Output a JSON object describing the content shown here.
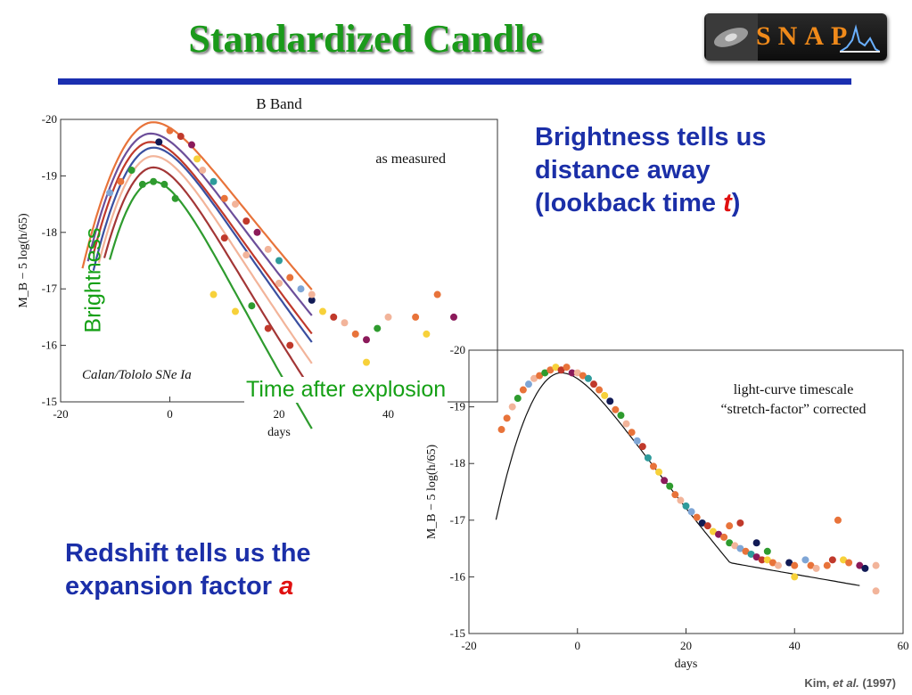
{
  "slide": {
    "title": "Standardized Candle",
    "logo_text": "SNAP",
    "brightness_lines": [
      "Brightness tells us",
      "distance away",
      "(lookback time ",
      "t",
      ")"
    ],
    "redshift_lines": [
      "Redshift tells us the",
      "expansion factor ",
      "a"
    ],
    "overlay_brightness": "Brightness",
    "overlay_time": "Time after explosion",
    "credit": {
      "author": "Kim, ",
      "etal": "et al.",
      "year": " (1997)"
    }
  },
  "colors": {
    "title_green": "#1a9a1a",
    "rule_blue": "#1b2fb0",
    "text_blue": "#1b2fa8",
    "accent_red": "#e01010"
  },
  "chart_data": [
    {
      "type": "line",
      "title": "B Band",
      "annotation": "as measured",
      "survey_label": "Calan/Tololo SNe Ia",
      "xlabel": "days",
      "ylabel": "M_B − 5 log(h/65)",
      "xlim": [
        -20,
        60
      ],
      "ylim": [
        -15,
        -20
      ],
      "xticks": [
        -20,
        0,
        20,
        40
      ],
      "yticks": [
        -20,
        -19,
        -18,
        -17,
        -16,
        -15
      ],
      "series": [
        {
          "color": "#e8733a",
          "peak": -19.95,
          "t0": -3.0,
          "decline": 0.105,
          "rise": 0.85,
          "start": -16
        },
        {
          "color": "#6c4e9a",
          "peak": -19.75,
          "t0": -3.5,
          "decline": 0.112,
          "rise": 0.95,
          "start": -15
        },
        {
          "color": "#c0392b",
          "peak": -19.6,
          "t0": -3.5,
          "decline": 0.118,
          "rise": 1.0,
          "start": -14
        },
        {
          "color": "#3a4fa0",
          "peak": -19.5,
          "t0": -3.0,
          "decline": 0.122,
          "rise": 1.0,
          "start": -14
        },
        {
          "color": "#f2b49a",
          "peak": -19.35,
          "t0": -3.0,
          "decline": 0.13,
          "rise": 1.05,
          "start": -13
        },
        {
          "color": "#a33636",
          "peak": -19.15,
          "t0": -3.0,
          "decline": 0.14,
          "rise": 1.1,
          "start": -12
        },
        {
          "color": "#2e9b2e",
          "peak": -18.9,
          "t0": -3.0,
          "decline": 0.155,
          "rise": 1.2,
          "start": -11
        }
      ],
      "points": [
        {
          "x": -11,
          "y": -18.7,
          "c": "#7fa6d6"
        },
        {
          "x": -9,
          "y": -18.9,
          "c": "#e8733a"
        },
        {
          "x": -7,
          "y": -19.1,
          "c": "#2e9b2e"
        },
        {
          "x": -5,
          "y": -18.85,
          "c": "#2e9b2e"
        },
        {
          "x": -3,
          "y": -18.9,
          "c": "#2e9b2e"
        },
        {
          "x": -1,
          "y": -18.85,
          "c": "#2e9b2e"
        },
        {
          "x": 1,
          "y": -18.6,
          "c": "#2e9b2e"
        },
        {
          "x": -2,
          "y": -19.6,
          "c": "#111a55"
        },
        {
          "x": 0,
          "y": -19.8,
          "c": "#e8733a"
        },
        {
          "x": 2,
          "y": -19.7,
          "c": "#c0392b"
        },
        {
          "x": 4,
          "y": -19.55,
          "c": "#8b1a5a"
        },
        {
          "x": 5,
          "y": -19.3,
          "c": "#f7d13a"
        },
        {
          "x": 6,
          "y": -19.1,
          "c": "#f2b49a"
        },
        {
          "x": 8,
          "y": -18.9,
          "c": "#2e9b9b"
        },
        {
          "x": 10,
          "y": -18.6,
          "c": "#e8733a"
        },
        {
          "x": 12,
          "y": -18.5,
          "c": "#f2b49a"
        },
        {
          "x": 14,
          "y": -18.2,
          "c": "#c0392b"
        },
        {
          "x": 16,
          "y": -18.0,
          "c": "#8b1a5a"
        },
        {
          "x": 18,
          "y": -17.7,
          "c": "#f2b49a"
        },
        {
          "x": 20,
          "y": -17.5,
          "c": "#2e9b9b"
        },
        {
          "x": 22,
          "y": -17.2,
          "c": "#e8733a"
        },
        {
          "x": 24,
          "y": -17.0,
          "c": "#7fa6d6"
        },
        {
          "x": 26,
          "y": -16.8,
          "c": "#111a55"
        },
        {
          "x": 28,
          "y": -16.6,
          "c": "#f7d13a"
        },
        {
          "x": 30,
          "y": -16.5,
          "c": "#c0392b"
        },
        {
          "x": 32,
          "y": -16.4,
          "c": "#f2b49a"
        },
        {
          "x": 34,
          "y": -16.2,
          "c": "#e8733a"
        },
        {
          "x": 36,
          "y": -16.1,
          "c": "#8b1a5a"
        },
        {
          "x": 38,
          "y": -16.3,
          "c": "#2e9b2e"
        },
        {
          "x": 40,
          "y": -16.5,
          "c": "#f2b49a"
        },
        {
          "x": 45,
          "y": -16.5,
          "c": "#e8733a"
        },
        {
          "x": 47,
          "y": -16.2,
          "c": "#f7d13a"
        },
        {
          "x": 49,
          "y": -16.9,
          "c": "#e8733a"
        },
        {
          "x": 52,
          "y": -16.5,
          "c": "#8b1a5a"
        },
        {
          "x": 8,
          "y": -16.9,
          "c": "#f7d13a"
        },
        {
          "x": 12,
          "y": -16.6,
          "c": "#f7d13a"
        },
        {
          "x": 15,
          "y": -16.7,
          "c": "#2e9b2e"
        },
        {
          "x": 18,
          "y": -16.3,
          "c": "#c0392b"
        },
        {
          "x": 22,
          "y": -16.0,
          "c": "#c0392b"
        },
        {
          "x": 36,
          "y": -15.7,
          "c": "#f7d13a"
        },
        {
          "x": 10,
          "y": -17.9,
          "c": "#c0392b"
        },
        {
          "x": 14,
          "y": -17.6,
          "c": "#f2b49a"
        },
        {
          "x": 20,
          "y": -17.1,
          "c": "#f2b49a"
        },
        {
          "x": 26,
          "y": -16.9,
          "c": "#f2b49a"
        }
      ]
    },
    {
      "type": "scatter",
      "annotation": [
        "light-curve timescale",
        "“stretch-factor” corrected"
      ],
      "xlabel": "days",
      "ylabel": "M_B − 5 log(h/65)",
      "xlim": [
        -20,
        60
      ],
      "ylim": [
        -15,
        -20
      ],
      "xticks": [
        -20,
        0,
        20,
        40,
        60
      ],
      "yticks": [
        -20,
        -19,
        -18,
        -17,
        -16,
        -15
      ],
      "template": {
        "peak": -19.6,
        "t0": -3.0,
        "decline": 0.11,
        "rise": 1.0,
        "start": -15,
        "end": 52,
        "floor": -16.25
      },
      "points": [
        {
          "x": -14,
          "y": -18.6,
          "c": "#e8733a"
        },
        {
          "x": -13,
          "y": -18.8,
          "c": "#e8733a"
        },
        {
          "x": -12,
          "y": -19.0,
          "c": "#f2b49a"
        },
        {
          "x": -11,
          "y": -19.15,
          "c": "#2e9b2e"
        },
        {
          "x": -10,
          "y": -19.3,
          "c": "#e8733a"
        },
        {
          "x": -9,
          "y": -19.4,
          "c": "#7fa6d6"
        },
        {
          "x": -8,
          "y": -19.5,
          "c": "#f2b49a"
        },
        {
          "x": -7,
          "y": -19.55,
          "c": "#e8733a"
        },
        {
          "x": -6,
          "y": -19.6,
          "c": "#2e9b2e"
        },
        {
          "x": -5,
          "y": -19.65,
          "c": "#e8733a"
        },
        {
          "x": -4,
          "y": -19.7,
          "c": "#f7d13a"
        },
        {
          "x": -3,
          "y": -19.65,
          "c": "#c0392b"
        },
        {
          "x": -2,
          "y": -19.7,
          "c": "#e8733a"
        },
        {
          "x": -1,
          "y": -19.6,
          "c": "#8b1a5a"
        },
        {
          "x": 0,
          "y": -19.6,
          "c": "#f2b49a"
        },
        {
          "x": 1,
          "y": -19.55,
          "c": "#e8733a"
        },
        {
          "x": 2,
          "y": -19.5,
          "c": "#2e9b9b"
        },
        {
          "x": 3,
          "y": -19.4,
          "c": "#c0392b"
        },
        {
          "x": 4,
          "y": -19.3,
          "c": "#e8733a"
        },
        {
          "x": 5,
          "y": -19.2,
          "c": "#f7d13a"
        },
        {
          "x": 6,
          "y": -19.1,
          "c": "#111a55"
        },
        {
          "x": 7,
          "y": -18.95,
          "c": "#e8733a"
        },
        {
          "x": 8,
          "y": -18.85,
          "c": "#2e9b2e"
        },
        {
          "x": 9,
          "y": -18.7,
          "c": "#f2b49a"
        },
        {
          "x": 10,
          "y": -18.55,
          "c": "#e8733a"
        },
        {
          "x": 11,
          "y": -18.4,
          "c": "#7fa6d6"
        },
        {
          "x": 12,
          "y": -18.3,
          "c": "#c0392b"
        },
        {
          "x": 13,
          "y": -18.1,
          "c": "#2e9b9b"
        },
        {
          "x": 14,
          "y": -17.95,
          "c": "#e8733a"
        },
        {
          "x": 15,
          "y": -17.85,
          "c": "#f7d13a"
        },
        {
          "x": 16,
          "y": -17.7,
          "c": "#8b1a5a"
        },
        {
          "x": 17,
          "y": -17.6,
          "c": "#2e9b2e"
        },
        {
          "x": 18,
          "y": -17.45,
          "c": "#e8733a"
        },
        {
          "x": 19,
          "y": -17.35,
          "c": "#f2b49a"
        },
        {
          "x": 20,
          "y": -17.25,
          "c": "#2e9b9b"
        },
        {
          "x": 21,
          "y": -17.15,
          "c": "#7fa6d6"
        },
        {
          "x": 22,
          "y": -17.05,
          "c": "#e8733a"
        },
        {
          "x": 23,
          "y": -16.95,
          "c": "#111a55"
        },
        {
          "x": 24,
          "y": -16.9,
          "c": "#c0392b"
        },
        {
          "x": 25,
          "y": -16.8,
          "c": "#f7d13a"
        },
        {
          "x": 26,
          "y": -16.75,
          "c": "#8b1a5a"
        },
        {
          "x": 27,
          "y": -16.7,
          "c": "#e8733a"
        },
        {
          "x": 28,
          "y": -16.6,
          "c": "#2e9b2e"
        },
        {
          "x": 29,
          "y": -16.55,
          "c": "#f2b49a"
        },
        {
          "x": 30,
          "y": -16.5,
          "c": "#7fa6d6"
        },
        {
          "x": 31,
          "y": -16.45,
          "c": "#e8733a"
        },
        {
          "x": 32,
          "y": -16.4,
          "c": "#2e9b9b"
        },
        {
          "x": 33,
          "y": -16.35,
          "c": "#8b1a5a"
        },
        {
          "x": 34,
          "y": -16.3,
          "c": "#c0392b"
        },
        {
          "x": 35,
          "y": -16.3,
          "c": "#f7d13a"
        },
        {
          "x": 36,
          "y": -16.25,
          "c": "#e8733a"
        },
        {
          "x": 37,
          "y": -16.2,
          "c": "#f2b49a"
        },
        {
          "x": 39,
          "y": -16.25,
          "c": "#111a55"
        },
        {
          "x": 40,
          "y": -16.2,
          "c": "#e8733a"
        },
        {
          "x": 42,
          "y": -16.3,
          "c": "#7fa6d6"
        },
        {
          "x": 43,
          "y": -16.2,
          "c": "#e8733a"
        },
        {
          "x": 44,
          "y": -16.15,
          "c": "#f2b49a"
        },
        {
          "x": 46,
          "y": -16.2,
          "c": "#e8733a"
        },
        {
          "x": 47,
          "y": -16.3,
          "c": "#c0392b"
        },
        {
          "x": 48,
          "y": -17.0,
          "c": "#e8733a"
        },
        {
          "x": 49,
          "y": -16.3,
          "c": "#f7d13a"
        },
        {
          "x": 50,
          "y": -16.25,
          "c": "#e8733a"
        },
        {
          "x": 52,
          "y": -16.2,
          "c": "#8b1a5a"
        },
        {
          "x": 53,
          "y": -16.15,
          "c": "#111a55"
        },
        {
          "x": 55,
          "y": -16.2,
          "c": "#f2b49a"
        },
        {
          "x": 55,
          "y": -15.75,
          "c": "#f2b49a"
        },
        {
          "x": 40,
          "y": -16.0,
          "c": "#f7d13a"
        },
        {
          "x": 28,
          "y": -16.9,
          "c": "#e8733a"
        },
        {
          "x": 33,
          "y": -16.6,
          "c": "#111a55"
        },
        {
          "x": 35,
          "y": -16.45,
          "c": "#2e9b2e"
        },
        {
          "x": 30,
          "y": -16.95,
          "c": "#c0392b"
        }
      ]
    }
  ]
}
